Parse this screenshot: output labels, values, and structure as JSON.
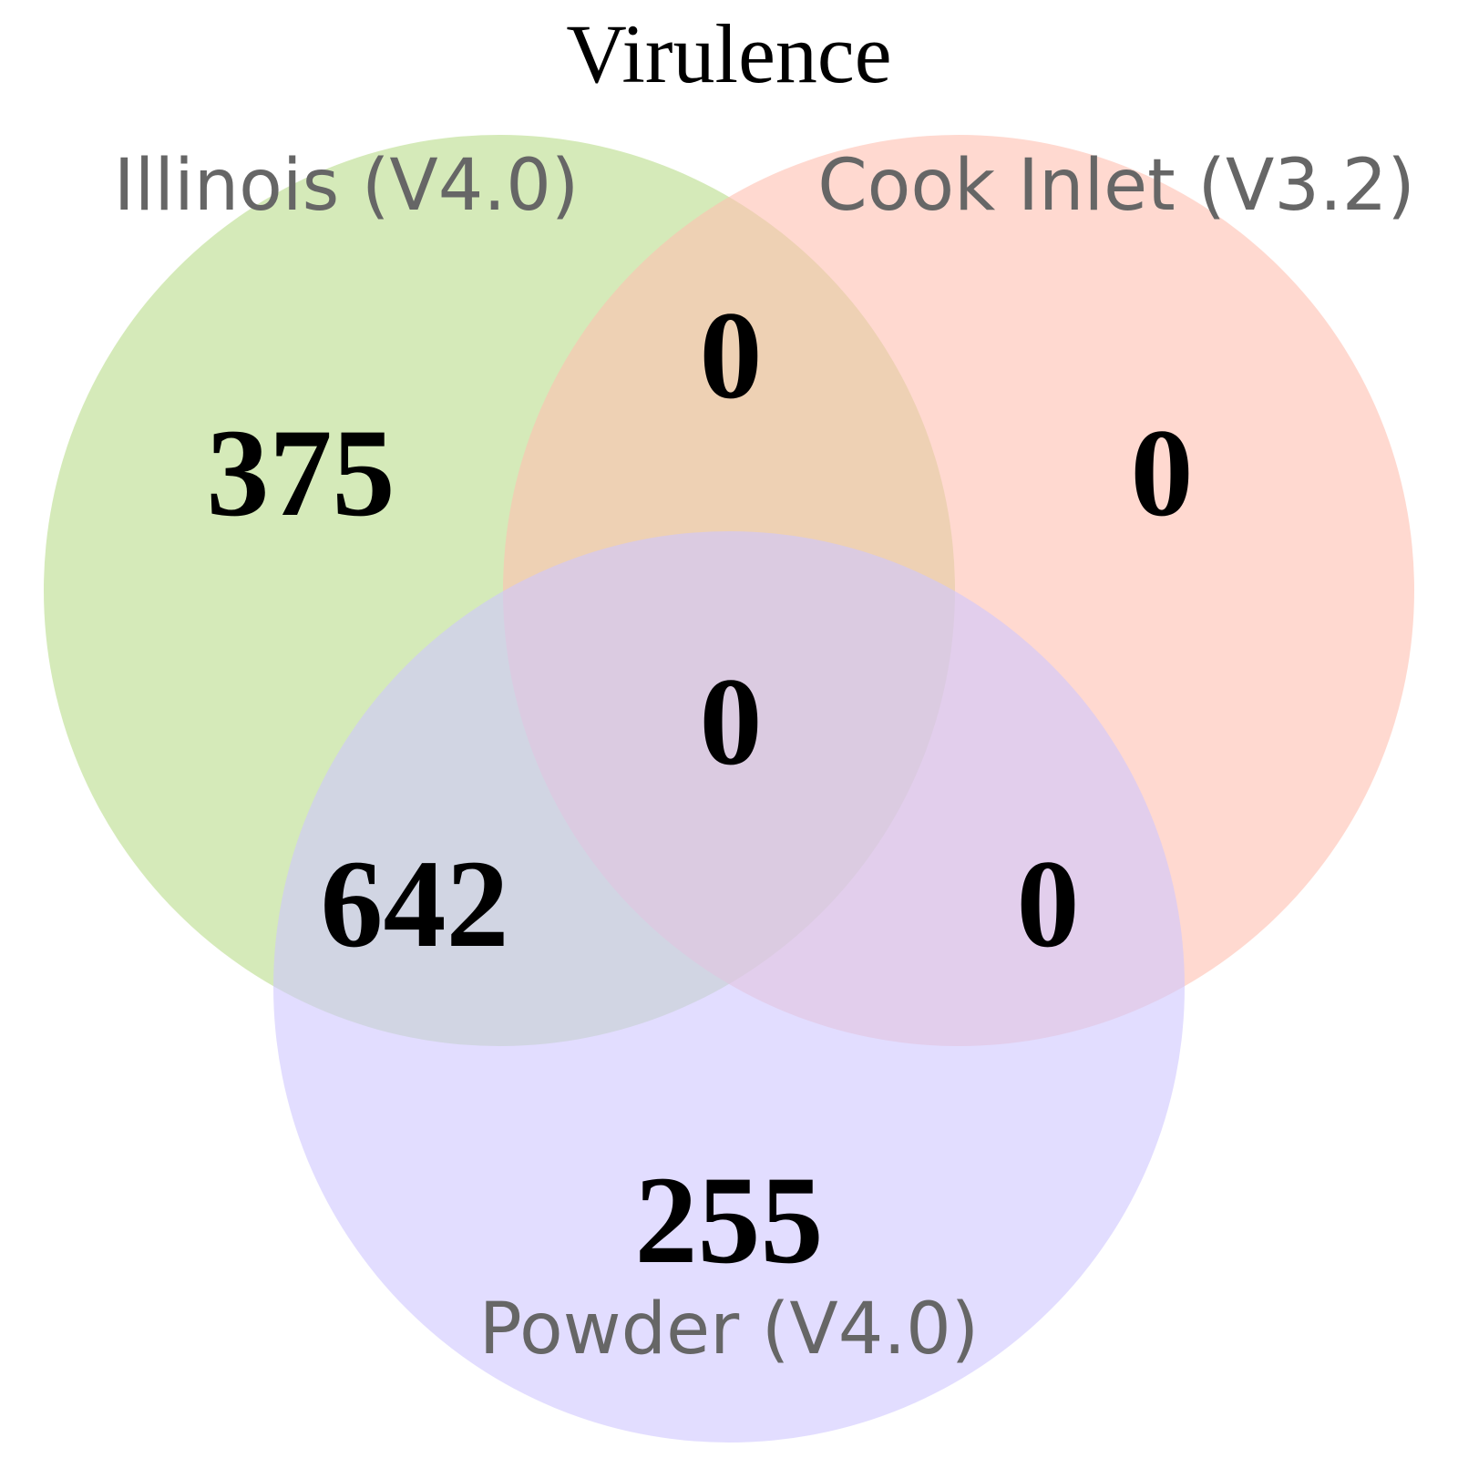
{
  "diagram": {
    "title": "Virulence",
    "sets": [
      {
        "id": "illinois",
        "label": "Illinois (V4.0)",
        "color": "#b9dc8a"
      },
      {
        "id": "cook-inlet",
        "label": "Cook Inlet (V3.2)",
        "color": "#ffc0b0"
      },
      {
        "id": "powder",
        "label": "Powder (V4.0)",
        "color": "#cfc6ff"
      }
    ],
    "regions": {
      "illinois_only": "375",
      "cook_inlet_only": "0",
      "illinois_cook_inlet": "0",
      "all_three": "0",
      "illinois_powder": "642",
      "cook_inlet_powder": "0",
      "powder_only": "255"
    }
  }
}
